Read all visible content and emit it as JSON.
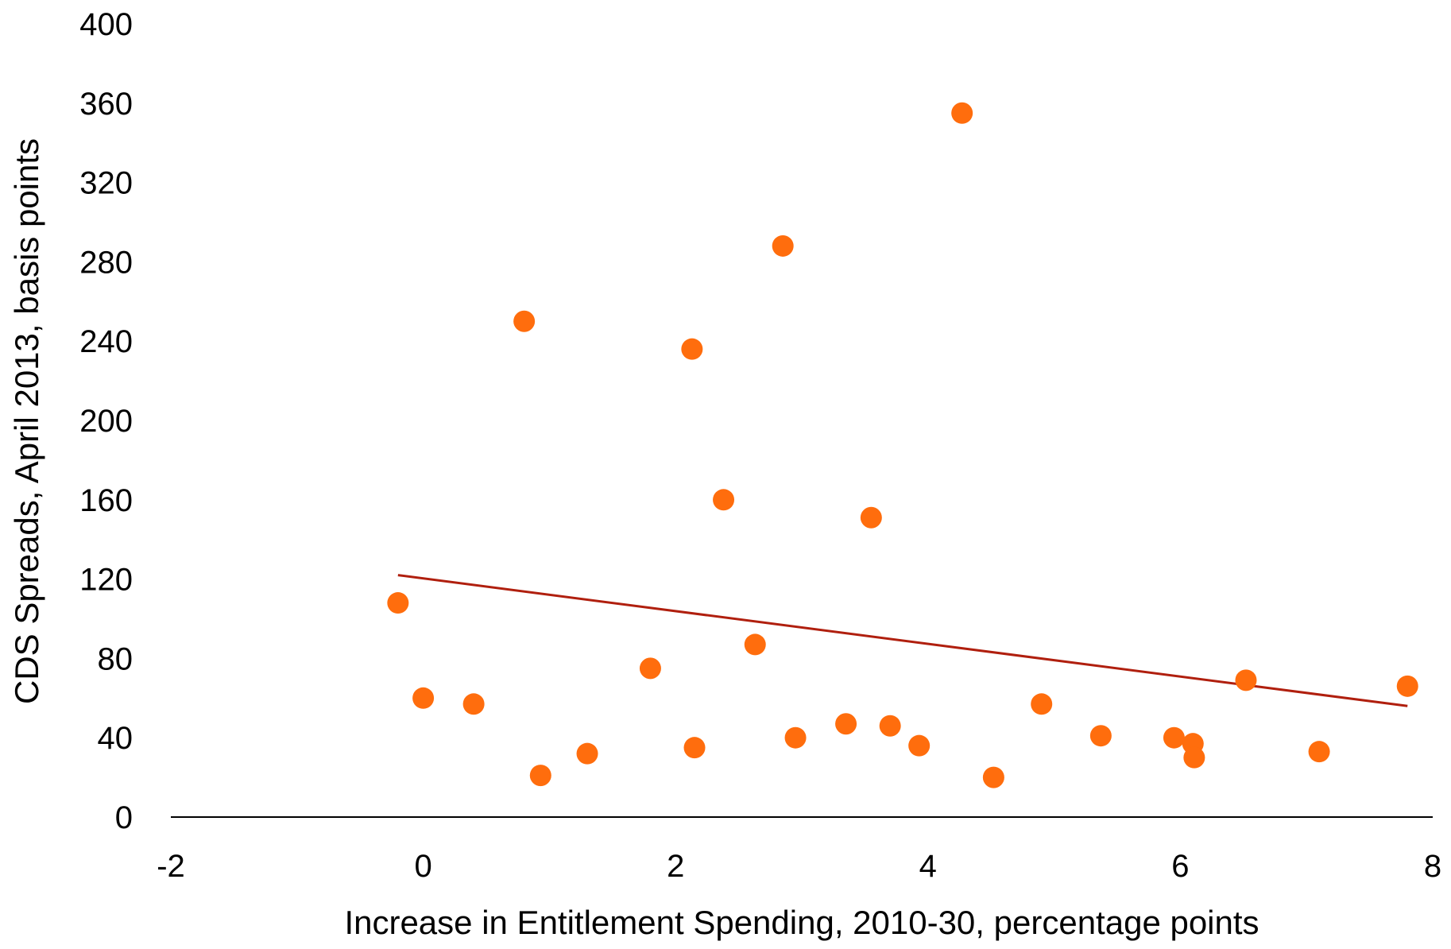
{
  "chart_data": {
    "type": "scatter",
    "title": "",
    "xlabel": "Increase in Entitlement Spending, 2010-30, percentage points",
    "ylabel": "CDS Spreads, April 2013, basis points",
    "xlim": [
      -2,
      8
    ],
    "ylim": [
      0,
      400
    ],
    "xticks": [
      "-2",
      "0",
      "2",
      "4",
      "6",
      "8"
    ],
    "yticks": [
      "0",
      "40",
      "80",
      "120",
      "160",
      "200",
      "240",
      "280",
      "320",
      "360",
      "400"
    ],
    "grid": false,
    "legend": "none",
    "marker_color": "#FF6D0D",
    "trendline_color": "#B01F0E",
    "points": [
      {
        "x": -0.2,
        "y": 108
      },
      {
        "x": 0.0,
        "y": 60
      },
      {
        "x": 0.4,
        "y": 57
      },
      {
        "x": 0.8,
        "y": 250
      },
      {
        "x": 0.93,
        "y": 21
      },
      {
        "x": 1.3,
        "y": 32
      },
      {
        "x": 1.8,
        "y": 75
      },
      {
        "x": 2.13,
        "y": 236
      },
      {
        "x": 2.15,
        "y": 35
      },
      {
        "x": 2.38,
        "y": 160
      },
      {
        "x": 2.63,
        "y": 87
      },
      {
        "x": 2.85,
        "y": 288
      },
      {
        "x": 2.95,
        "y": 40
      },
      {
        "x": 3.35,
        "y": 47
      },
      {
        "x": 3.55,
        "y": 151
      },
      {
        "x": 3.7,
        "y": 46
      },
      {
        "x": 3.93,
        "y": 36
      },
      {
        "x": 4.27,
        "y": 355
      },
      {
        "x": 4.52,
        "y": 20
      },
      {
        "x": 4.9,
        "y": 57
      },
      {
        "x": 5.37,
        "y": 41
      },
      {
        "x": 5.95,
        "y": 40
      },
      {
        "x": 6.1,
        "y": 37
      },
      {
        "x": 6.11,
        "y": 30
      },
      {
        "x": 6.52,
        "y": 69
      },
      {
        "x": 7.1,
        "y": 33
      },
      {
        "x": 7.8,
        "y": 66
      }
    ],
    "trendline": {
      "x": [
        -0.2,
        7.8
      ],
      "y": [
        122,
        56
      ]
    }
  }
}
